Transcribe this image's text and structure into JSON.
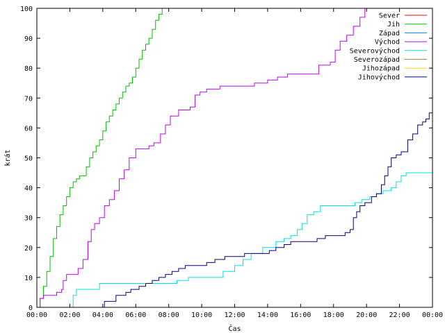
{
  "chart_data": {
    "type": "line",
    "title": "",
    "xlabel": "Čas",
    "ylabel": "krát",
    "ylim": [
      0,
      100
    ],
    "xlim_hours": [
      0,
      24
    ],
    "x_ticks": [
      "00:00",
      "02:00",
      "04:00",
      "06:00",
      "08:00",
      "10:00",
      "12:00",
      "14:00",
      "16:00",
      "18:00",
      "20:00",
      "22:00",
      "00:00"
    ],
    "y_ticks": [
      "0",
      "10",
      "20",
      "30",
      "40",
      "50",
      "60",
      "70",
      "80",
      "90",
      "100"
    ],
    "grid": false,
    "legend_position": "top-right",
    "series": [
      {
        "name": "Sever",
        "color": "#ff0000",
        "points": []
      },
      {
        "name": "Jih",
        "color": "#00c000",
        "points": [
          [
            0,
            0
          ],
          [
            0.2,
            3
          ],
          [
            0.4,
            7
          ],
          [
            0.6,
            12
          ],
          [
            0.8,
            17
          ],
          [
            1.0,
            23
          ],
          [
            1.2,
            27
          ],
          [
            1.4,
            31
          ],
          [
            1.6,
            34
          ],
          [
            1.8,
            37
          ],
          [
            2.0,
            40
          ],
          [
            2.2,
            42
          ],
          [
            2.4,
            43
          ],
          [
            2.6,
            44
          ],
          [
            2.8,
            44
          ],
          [
            3.0,
            47
          ],
          [
            3.2,
            50
          ],
          [
            3.4,
            52
          ],
          [
            3.6,
            54
          ],
          [
            3.8,
            56
          ],
          [
            4.0,
            59
          ],
          [
            4.2,
            62
          ],
          [
            4.4,
            64
          ],
          [
            4.6,
            66
          ],
          [
            4.8,
            68
          ],
          [
            5.0,
            70
          ],
          [
            5.2,
            72
          ],
          [
            5.4,
            74
          ],
          [
            5.6,
            75
          ],
          [
            5.8,
            77
          ],
          [
            6.0,
            80
          ],
          [
            6.2,
            83
          ],
          [
            6.4,
            86
          ],
          [
            6.6,
            88
          ],
          [
            6.8,
            90
          ],
          [
            7.0,
            93
          ],
          [
            7.2,
            96
          ],
          [
            7.4,
            98
          ],
          [
            7.6,
            100
          ],
          [
            8.1,
            100
          ]
        ]
      },
      {
        "name": "Západ",
        "color": "#0080ff",
        "points": []
      },
      {
        "name": "Východ",
        "color": "#c000ff",
        "points": [
          [
            0,
            0
          ],
          [
            0.2,
            3
          ],
          [
            0.4,
            4
          ],
          [
            1.0,
            4
          ],
          [
            1.2,
            5
          ],
          [
            1.5,
            6
          ],
          [
            1.6,
            9
          ],
          [
            1.8,
            11
          ],
          [
            2.3,
            11
          ],
          [
            2.5,
            13
          ],
          [
            2.8,
            16
          ],
          [
            3.1,
            22
          ],
          [
            3.3,
            26
          ],
          [
            3.5,
            28
          ],
          [
            3.8,
            30
          ],
          [
            4.1,
            34
          ],
          [
            4.4,
            36
          ],
          [
            4.7,
            39
          ],
          [
            5.0,
            43
          ],
          [
            5.3,
            46
          ],
          [
            5.6,
            50
          ],
          [
            6.0,
            53
          ],
          [
            6.5,
            53
          ],
          [
            6.8,
            54
          ],
          [
            7.1,
            55
          ],
          [
            7.5,
            58
          ],
          [
            7.8,
            61
          ],
          [
            8.1,
            64
          ],
          [
            8.6,
            66
          ],
          [
            9.0,
            66
          ],
          [
            9.3,
            67
          ],
          [
            9.6,
            71
          ],
          [
            9.9,
            72
          ],
          [
            10.3,
            73
          ],
          [
            10.8,
            73
          ],
          [
            11.1,
            74
          ],
          [
            11.7,
            74
          ],
          [
            12.5,
            74
          ],
          [
            13.2,
            75
          ],
          [
            14.0,
            76
          ],
          [
            14.6,
            77
          ],
          [
            15.2,
            78
          ],
          [
            16.0,
            78
          ],
          [
            16.6,
            78
          ],
          [
            17.1,
            81
          ],
          [
            17.8,
            82
          ],
          [
            18.1,
            86
          ],
          [
            18.4,
            89
          ],
          [
            18.8,
            91
          ],
          [
            19.2,
            94
          ],
          [
            19.6,
            97
          ],
          [
            19.9,
            100
          ],
          [
            20.1,
            100
          ]
        ]
      },
      {
        "name": "Severovýchod",
        "color": "#00e0e0",
        "points": [
          [
            0,
            0
          ],
          [
            2.0,
            0
          ],
          [
            2.2,
            4
          ],
          [
            2.4,
            6
          ],
          [
            3.5,
            6
          ],
          [
            3.8,
            8
          ],
          [
            6.0,
            8
          ],
          [
            7.4,
            8
          ],
          [
            8.5,
            9
          ],
          [
            9.2,
            10
          ],
          [
            10.6,
            10
          ],
          [
            11.3,
            12
          ],
          [
            12.0,
            14
          ],
          [
            12.5,
            16
          ],
          [
            13.0,
            18
          ],
          [
            13.7,
            20
          ],
          [
            14.3,
            20
          ],
          [
            14.5,
            22
          ],
          [
            15.0,
            23
          ],
          [
            15.4,
            24
          ],
          [
            15.8,
            26
          ],
          [
            16.1,
            28
          ],
          [
            16.4,
            31
          ],
          [
            16.8,
            32
          ],
          [
            17.2,
            34
          ],
          [
            18.0,
            34
          ],
          [
            19.3,
            35
          ],
          [
            19.7,
            36
          ],
          [
            20.2,
            37
          ],
          [
            20.6,
            38
          ],
          [
            21.0,
            39
          ],
          [
            21.5,
            40
          ],
          [
            21.8,
            42
          ],
          [
            22.1,
            44
          ],
          [
            22.4,
            45
          ],
          [
            24.0,
            45
          ]
        ]
      },
      {
        "name": "Severozápad",
        "color": "#c08040",
        "points": []
      },
      {
        "name": "Jihozápad",
        "color": "#ffd700",
        "points": []
      },
      {
        "name": "Jihovýchod",
        "color": "#000080",
        "points": [
          [
            0,
            0
          ],
          [
            4.0,
            0
          ],
          [
            4.1,
            2
          ],
          [
            4.5,
            2
          ],
          [
            4.8,
            4
          ],
          [
            5.4,
            5
          ],
          [
            5.7,
            6
          ],
          [
            6.2,
            7
          ],
          [
            6.6,
            8
          ],
          [
            7.0,
            9
          ],
          [
            7.4,
            10
          ],
          [
            7.8,
            11
          ],
          [
            8.2,
            12
          ],
          [
            8.6,
            13
          ],
          [
            9.0,
            14
          ],
          [
            10.0,
            14
          ],
          [
            10.3,
            15
          ],
          [
            10.8,
            16
          ],
          [
            11.4,
            17
          ],
          [
            12.0,
            17
          ],
          [
            12.6,
            18
          ],
          [
            13.5,
            18
          ],
          [
            14.1,
            19
          ],
          [
            14.5,
            20
          ],
          [
            15.0,
            21
          ],
          [
            15.4,
            22
          ],
          [
            16.6,
            22
          ],
          [
            17.0,
            23
          ],
          [
            17.5,
            24
          ],
          [
            18.0,
            24
          ],
          [
            18.7,
            25
          ],
          [
            19.0,
            26
          ],
          [
            19.2,
            30
          ],
          [
            19.4,
            32
          ],
          [
            19.6,
            34
          ],
          [
            19.9,
            35
          ],
          [
            20.3,
            37
          ],
          [
            20.6,
            38
          ],
          [
            20.9,
            41
          ],
          [
            21.1,
            44
          ],
          [
            21.3,
            47
          ],
          [
            21.5,
            50
          ],
          [
            21.8,
            51
          ],
          [
            22.1,
            52
          ],
          [
            22.5,
            56
          ],
          [
            22.8,
            58
          ],
          [
            23.1,
            61
          ],
          [
            23.4,
            62
          ],
          [
            23.6,
            63
          ],
          [
            23.8,
            65
          ],
          [
            24.0,
            67
          ]
        ]
      }
    ]
  }
}
